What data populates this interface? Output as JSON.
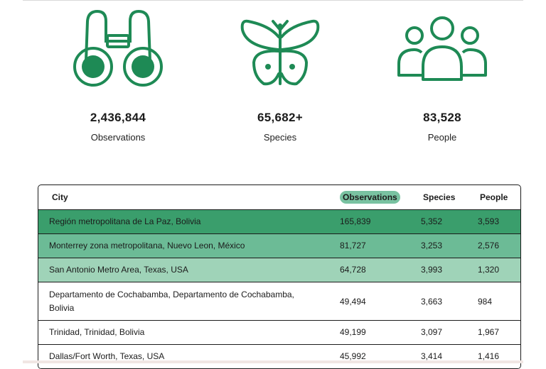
{
  "stats": [
    {
      "value": "2,436,844",
      "label": "Observations",
      "icon": "binoculars-icon"
    },
    {
      "value": "65,682+",
      "label": "Species",
      "icon": "butterfly-icon"
    },
    {
      "value": "83,528",
      "label": "People",
      "icon": "people-icon"
    }
  ],
  "table": {
    "headers": {
      "city": "City",
      "observations": "Observations",
      "species": "Species",
      "people": "People"
    },
    "rows": [
      {
        "city": "Región metropolitana de La Paz, Bolivia",
        "observations": "165,839",
        "species": "5,352",
        "people": "3,593"
      },
      {
        "city": "Monterrey zona metropolitana, Nuevo Leon, México",
        "observations": "81,727",
        "species": "3,253",
        "people": "2,576"
      },
      {
        "city": "San Antonio Metro Area, Texas, USA",
        "observations": "64,728",
        "species": "3,993",
        "people": "1,320"
      },
      {
        "city_line1": "Departamento de Cochabamba, Departamento de Cochabamba,",
        "city_line2": "Bolivia",
        "observations": "49,494",
        "species": "3,663",
        "people": "984"
      },
      {
        "city": "Trinidad, Trinidad, Bolivia",
        "observations": "49,199",
        "species": "3,097",
        "people": "1,967"
      },
      {
        "city": "Dallas/Fort Worth, Texas, USA",
        "observations": "45,992",
        "species": "3,414",
        "people": "1,416"
      }
    ]
  },
  "colors": {
    "accent": "#1e8a55",
    "row1": "#3a9e6c",
    "row2": "#6cbb96",
    "row3": "#9fd3b8",
    "pill": "#79c2a1"
  }
}
